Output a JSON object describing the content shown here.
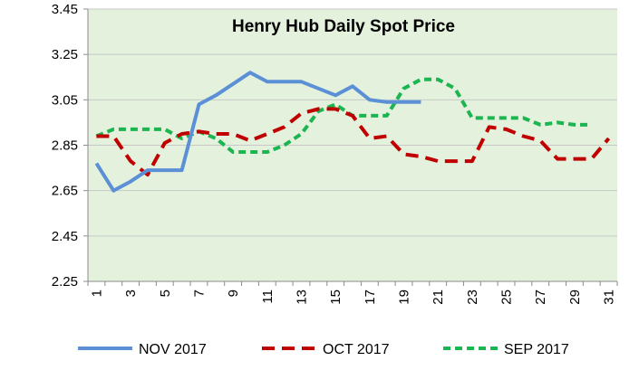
{
  "chart_data": {
    "type": "line",
    "title": "Henry Hub Daily Spot Price",
    "xlabel": "",
    "ylabel": "",
    "x": [
      1,
      2,
      3,
      4,
      5,
      6,
      7,
      8,
      9,
      10,
      11,
      12,
      13,
      14,
      15,
      16,
      17,
      18,
      19,
      20,
      21,
      22,
      23,
      24,
      25,
      26,
      27,
      28,
      29,
      30,
      31
    ],
    "x_tick_labels": [
      "1",
      "3",
      "5",
      "7",
      "9",
      "11",
      "13",
      "15",
      "17",
      "19",
      "21",
      "23",
      "25",
      "27",
      "29",
      "31"
    ],
    "ylim": [
      2.25,
      3.45
    ],
    "y_ticks": [
      "2.25",
      "2.45",
      "2.65",
      "2.85",
      "3.05",
      "3.25",
      "3.45"
    ],
    "grid": "horizontal",
    "legend_position": "bottom",
    "colors": {
      "plot_background": "#e3f1dd",
      "gridline": "#c8c8c8",
      "axis": "#8c8c8c"
    },
    "series": [
      {
        "name": "NOV 2017",
        "color": "#5b8fd6",
        "dash": "solid",
        "values": [
          2.77,
          2.65,
          2.69,
          2.74,
          2.74,
          2.74,
          3.03,
          3.07,
          3.12,
          3.17,
          3.13,
          3.13,
          3.13,
          3.1,
          3.07,
          3.11,
          3.05,
          3.04,
          3.04,
          3.04,
          null,
          null,
          null,
          null,
          null,
          null,
          null,
          null,
          null,
          null,
          null
        ]
      },
      {
        "name": "OCT 2017",
        "color": "#c00000",
        "dash": "dashed",
        "values": [
          2.89,
          2.89,
          2.78,
          2.72,
          2.86,
          2.9,
          2.91,
          2.9,
          2.9,
          2.87,
          2.9,
          2.93,
          2.99,
          3.01,
          3.01,
          2.98,
          2.88,
          2.89,
          2.81,
          2.8,
          2.78,
          2.78,
          2.78,
          2.93,
          2.92,
          2.89,
          2.87,
          2.79,
          2.79,
          2.79,
          2.88
        ]
      },
      {
        "name": "SEP 2017",
        "color": "#1cb550",
        "dash": "dotted",
        "values": [
          2.89,
          2.92,
          2.92,
          2.92,
          2.92,
          2.88,
          2.91,
          2.88,
          2.82,
          2.82,
          2.82,
          2.85,
          2.9,
          3.0,
          3.03,
          2.98,
          2.98,
          2.98,
          3.1,
          3.14,
          3.14,
          3.1,
          2.97,
          2.97,
          2.97,
          2.97,
          2.94,
          2.95,
          2.94,
          2.94,
          null
        ]
      }
    ]
  }
}
